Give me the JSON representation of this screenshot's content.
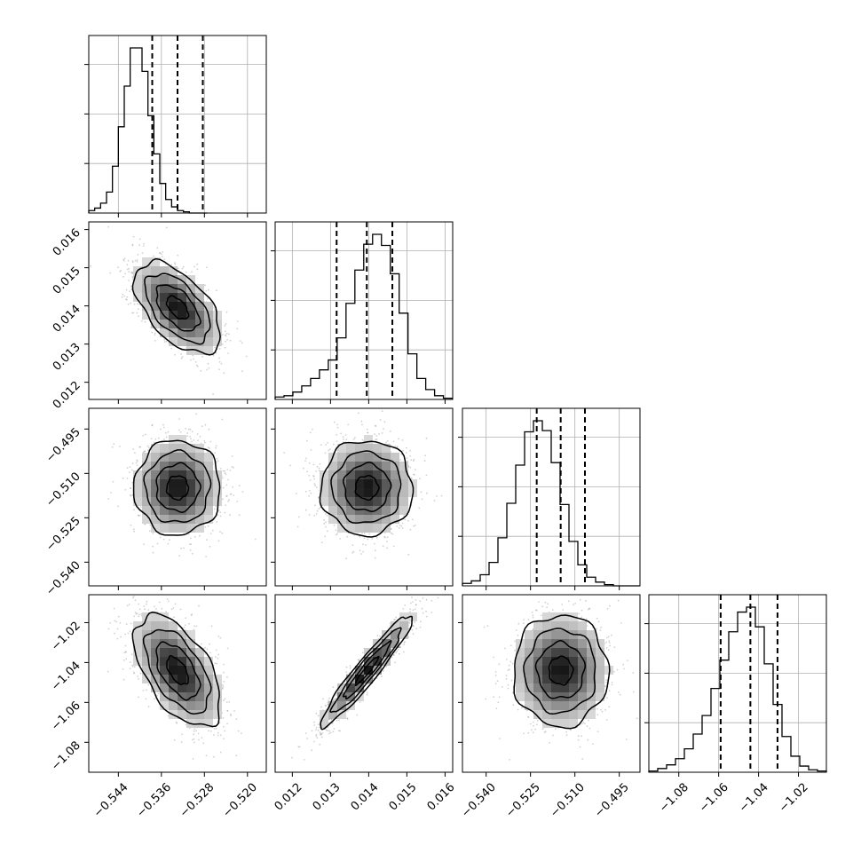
{
  "chart_data": {
    "type": "corner",
    "grid": true,
    "parameters": [
      {
        "name": "",
        "range": [
          -0.5495,
          -0.5165
        ],
        "ticks": [
          -0.544,
          -0.536,
          -0.528,
          -0.52
        ],
        "tick_labels": [
          "−0.544",
          "−0.536",
          "−0.528",
          "−0.520"
        ],
        "quantiles": [
          -0.5377,
          -0.533,
          -0.5283
        ],
        "histogram": {
          "bin_start": -0.5495,
          "bin_width": 0.0011,
          "counts": [
            2,
            4,
            8,
            17,
            38,
            70,
            103,
            134,
            134,
            115,
            79,
            48,
            24,
            11,
            5,
            2,
            1,
            0,
            0,
            0
          ]
        }
      },
      {
        "name": "",
        "range": [
          0.01155,
          0.0162
        ],
        "ticks": [
          0.012,
          0.013,
          0.014,
          0.015,
          0.016
        ],
        "tick_labels": [
          "0.012",
          "0.013",
          "0.014",
          "0.015",
          "0.016"
        ],
        "quantiles": [
          0.01316,
          0.01395,
          0.01462
        ],
        "histogram": {
          "bin_start": 0.01155,
          "bin_width": 0.000232,
          "counts": [
            2,
            3,
            6,
            11,
            17,
            24,
            32,
            50,
            78,
            105,
            126,
            134,
            125,
            102,
            70,
            37,
            17,
            8,
            3,
            1
          ]
        }
      },
      {
        "name": "",
        "range": [
          -0.548,
          -0.488
        ],
        "ticks": [
          -0.54,
          -0.525,
          -0.51,
          -0.495
        ],
        "tick_labels": [
          "−0.540",
          "−0.525",
          "−0.510",
          "−0.495"
        ],
        "quantiles": [
          -0.5229,
          -0.5148,
          -0.5066
        ],
        "histogram": {
          "bin_start": -0.548,
          "bin_width": 0.003,
          "counts": [
            2,
            4,
            9,
            19,
            39,
            67,
            98,
            125,
            134,
            126,
            100,
            66,
            36,
            17,
            7,
            3,
            1,
            0,
            0,
            0
          ]
        }
      },
      {
        "name": "",
        "range": [
          -1.095,
          -1.006
        ],
        "ticks": [
          -1.08,
          -1.06,
          -1.04,
          -1.02
        ],
        "tick_labels": [
          "−1.08",
          "−1.06",
          "−1.04",
          "−1.02"
        ],
        "quantiles": [
          -1.059,
          -1.0441,
          -1.0305
        ],
        "histogram": {
          "bin_start": -1.095,
          "bin_width": 0.00445,
          "counts": [
            1,
            3,
            6,
            11,
            19,
            31,
            46,
            68,
            91,
            114,
            130,
            134,
            118,
            88,
            55,
            29,
            13,
            5,
            2,
            1
          ]
        }
      }
    ],
    "pairs": [
      {
        "x": 0,
        "y": 1,
        "center": [
          -0.533,
          0.01395
        ],
        "sd": [
          0.004,
          0.0006
        ],
        "rho": -0.55
      },
      {
        "x": 0,
        "y": 2,
        "center": [
          -0.533,
          -0.5148
        ],
        "sd": [
          0.004,
          0.008
        ],
        "rho": 0.0
      },
      {
        "x": 1,
        "y": 2,
        "center": [
          0.01395,
          -0.5148
        ],
        "sd": [
          0.0006,
          0.008
        ],
        "rho": 0.0
      },
      {
        "x": 0,
        "y": 3,
        "center": [
          -0.533,
          -1.0441
        ],
        "sd": [
          0.004,
          0.014
        ],
        "rho": -0.55
      },
      {
        "x": 1,
        "y": 3,
        "center": [
          0.01395,
          -1.0441
        ],
        "sd": [
          0.0006,
          0.014
        ],
        "rho": 0.95
      },
      {
        "x": 2,
        "y": 3,
        "center": [
          -0.5148,
          -1.0441
        ],
        "sd": [
          0.008,
          0.014
        ],
        "rho": 0.0
      }
    ]
  }
}
